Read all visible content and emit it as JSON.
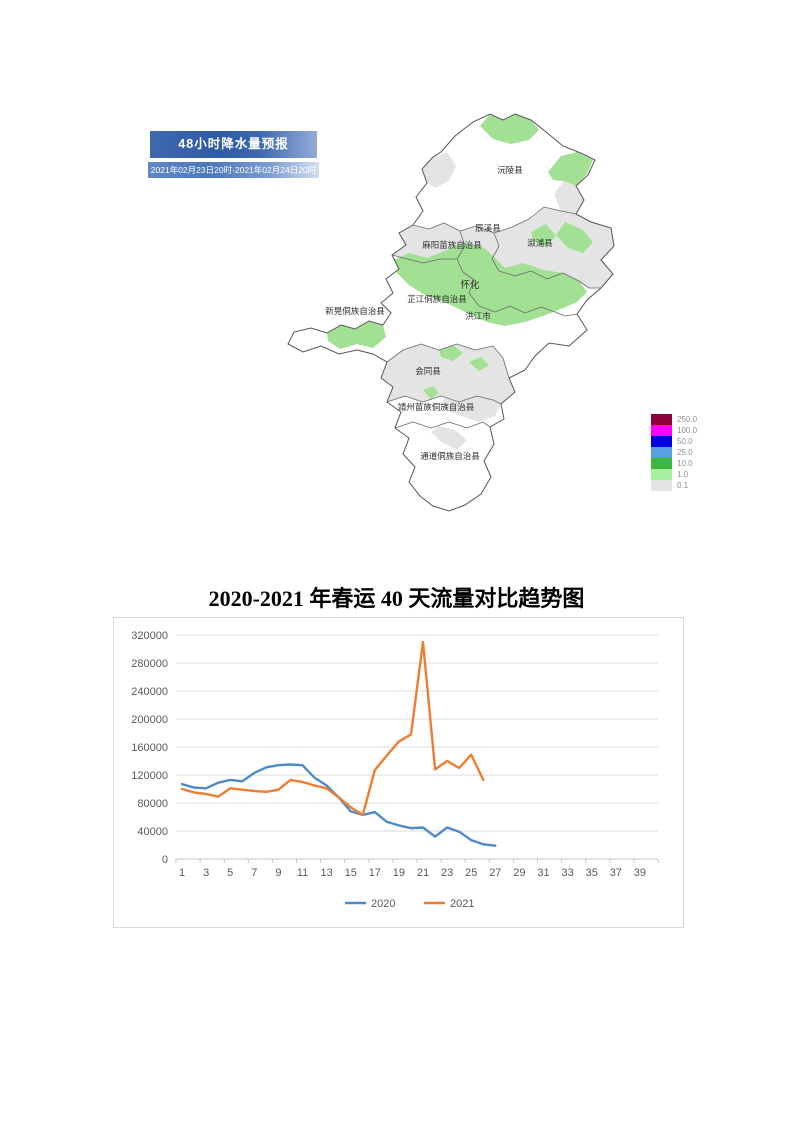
{
  "weather_map": {
    "title": "48小时降水量预报",
    "date_range": "2021年02月23日20时-2021年02月24日20时",
    "regions": [
      "沅陵县",
      "辰溪县",
      "麻阳苗族自治县",
      "溆浦县",
      "怀化",
      "芷江侗族自治县",
      "新晃侗族自治县",
      "洪江市",
      "会同县",
      "靖州苗族侗族自治县",
      "通道侗族自治县"
    ],
    "legend": {
      "values": [
        "250.0",
        "100.0",
        "50.0",
        "25.0",
        "10.0",
        "1.0",
        "0.1"
      ],
      "colors": [
        "#8e0039",
        "#fb00fb",
        "#0000e1",
        "#56a0e4",
        "#3db83d",
        "#a8f0a0",
        "#e4e4e4"
      ]
    },
    "fill_colors": {
      "rain_light_green": "#a2e193",
      "rain_trace_gray": "#e4e4e4",
      "no_rain": "#ffffff",
      "border": "#6b6b6b"
    }
  },
  "chart_data": {
    "type": "line",
    "title": "2020-2021 年春运 40 天流量对比趋势图",
    "xlabel": "",
    "ylabel": "",
    "ylim": [
      0,
      320000
    ],
    "ytick_step": 40000,
    "x_categories": 40,
    "x_tick_labels": [
      1,
      3,
      5,
      7,
      9,
      11,
      13,
      15,
      17,
      19,
      21,
      23,
      25,
      27,
      29,
      31,
      33,
      35,
      37,
      39
    ],
    "grid": true,
    "legend_position": "bottom",
    "series": [
      {
        "name": "2020",
        "color": "#4e8ac8",
        "values": [
          107000,
          102000,
          101000,
          109000,
          113000,
          111000,
          123000,
          131000,
          134000,
          135000,
          134000,
          116000,
          105000,
          88000,
          68000,
          63000,
          67000,
          53000,
          48000,
          44000,
          45000,
          32000,
          45000,
          39000,
          27000,
          21000,
          19000
        ]
      },
      {
        "name": "2021",
        "color": "#ed7d31",
        "values": [
          100000,
          95000,
          93000,
          89000,
          101000,
          99000,
          97000,
          96000,
          99000,
          113000,
          110000,
          105000,
          101000,
          88000,
          74000,
          63000,
          127000,
          148000,
          168000,
          178000,
          310000,
          128000,
          140000,
          130000,
          149000,
          113000
        ]
      }
    ]
  }
}
